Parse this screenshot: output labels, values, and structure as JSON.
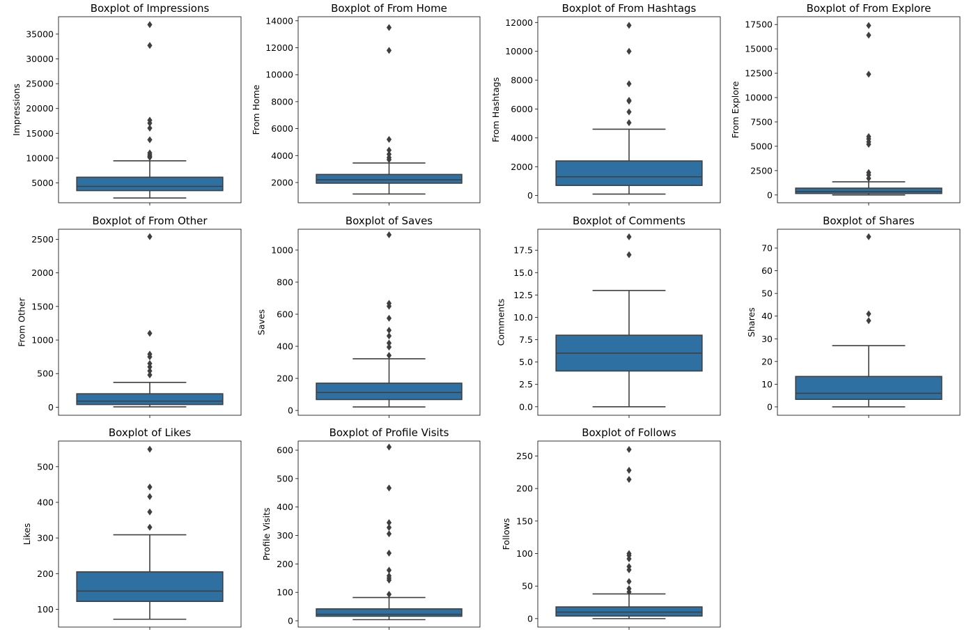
{
  "figure": {
    "background": "#ffffff"
  },
  "style": {
    "box_fill": "#2f70a2",
    "line_color": "#3f3f3f",
    "flier_color": "#3f3f3f"
  },
  "chart_data": [
    {
      "type": "boxplot",
      "title": "Boxplot of Impressions",
      "ylabel": "Impressions",
      "ylim": [
        1000,
        38500
      ],
      "yticks": [
        5000,
        10000,
        15000,
        20000,
        25000,
        30000,
        35000
      ],
      "ytick_labels": [
        "5000",
        "10000",
        "15000",
        "20000",
        "25000",
        "30000",
        "35000"
      ],
      "stats": {
        "whislo": 1950,
        "q1": 3450,
        "median": 4300,
        "q3": 6150,
        "whishi": 9450
      },
      "fliers": [
        10150,
        10350,
        10650,
        11050,
        13700,
        16050,
        17050,
        17650,
        32700,
        36900
      ]
    },
    {
      "type": "boxplot",
      "title": "Boxplot of From Home",
      "ylabel": "From Home",
      "ylim": [
        500,
        14300
      ],
      "yticks": [
        2000,
        4000,
        6000,
        8000,
        10000,
        12000,
        14000
      ],
      "ytick_labels": [
        "2000",
        "4000",
        "6000",
        "8000",
        "10000",
        "12000",
        "14000"
      ],
      "stats": {
        "whislo": 1150,
        "q1": 1950,
        "median": 2200,
        "q3": 2600,
        "whishi": 3450
      },
      "fliers": [
        3700,
        3850,
        4100,
        4400,
        5200,
        11800,
        13500
      ]
    },
    {
      "type": "boxplot",
      "title": "Boxplot of From Hashtags",
      "ylabel": "From Hashtags",
      "ylim": [
        -500,
        12400
      ],
      "yticks": [
        0,
        2000,
        4000,
        6000,
        8000,
        10000,
        12000
      ],
      "ytick_labels": [
        "0",
        "2000",
        "4000",
        "6000",
        "8000",
        "10000",
        "12000"
      ],
      "stats": {
        "whislo": 100,
        "q1": 700,
        "median": 1300,
        "q3": 2400,
        "whishi": 4600
      },
      "fliers": [
        5050,
        5800,
        6550,
        6600,
        7750,
        10000,
        11800
      ]
    },
    {
      "type": "boxplot",
      "title": "Boxplot of From Explore",
      "ylabel": "From Explore",
      "ylim": [
        -800,
        18300
      ],
      "yticks": [
        0,
        2500,
        5000,
        7500,
        10000,
        12500,
        15000,
        17500
      ],
      "ytick_labels": [
        "0",
        "2500",
        "5000",
        "7500",
        "10000",
        "12500",
        "15000",
        "17500"
      ],
      "stats": {
        "whislo": 0,
        "q1": 150,
        "median": 350,
        "q3": 700,
        "whishi": 1350
      },
      "fliers": [
        1700,
        2050,
        2300,
        5200,
        5450,
        5750,
        6000,
        12400,
        16400,
        17400
      ]
    },
    {
      "type": "boxplot",
      "title": "Boxplot of From Other",
      "ylabel": "From Other",
      "ylim": [
        -120,
        2650
      ],
      "yticks": [
        0,
        500,
        1000,
        1500,
        2000,
        2500
      ],
      "ytick_labels": [
        "0",
        "500",
        "1000",
        "1500",
        "2000",
        "2500"
      ],
      "stats": {
        "whislo": 5,
        "q1": 40,
        "median": 90,
        "q3": 200,
        "whishi": 370
      },
      "fliers": [
        480,
        540,
        600,
        650,
        750,
        790,
        1100,
        2540
      ]
    },
    {
      "type": "boxplot",
      "title": "Boxplot of Saves",
      "ylabel": "Saves",
      "ylim": [
        -30,
        1130
      ],
      "yticks": [
        0,
        200,
        400,
        600,
        800,
        1000
      ],
      "ytick_labels": [
        "0",
        "200",
        "400",
        "600",
        "800",
        "1000"
      ],
      "stats": {
        "whislo": 22,
        "q1": 68,
        "median": 112,
        "q3": 170,
        "whishi": 322
      },
      "fliers": [
        343,
        395,
        420,
        465,
        500,
        575,
        650,
        668,
        1095
      ]
    },
    {
      "type": "boxplot",
      "title": "Boxplot of Comments",
      "ylabel": "Comments",
      "ylim": [
        -0.95,
        19.85
      ],
      "yticks": [
        0,
        2.5,
        5,
        7.5,
        10,
        12.5,
        15,
        17.5
      ],
      "ytick_labels": [
        "0.0",
        "2.5",
        "5.0",
        "7.5",
        "10.0",
        "12.5",
        "15.0",
        "17.5"
      ],
      "stats": {
        "whislo": 0,
        "q1": 4,
        "median": 6,
        "q3": 8,
        "whishi": 13
      },
      "fliers": [
        17,
        19
      ]
    },
    {
      "type": "boxplot",
      "title": "Boxplot of Shares",
      "ylabel": "Shares",
      "ylim": [
        -3.7,
        78.3
      ],
      "yticks": [
        0,
        10,
        20,
        30,
        40,
        50,
        60,
        70
      ],
      "ytick_labels": [
        "0",
        "10",
        "20",
        "30",
        "40",
        "50",
        "60",
        "70"
      ],
      "stats": {
        "whislo": 0,
        "q1": 3.3,
        "median": 6,
        "q3": 13.4,
        "whishi": 27
      },
      "fliers": [
        38,
        41,
        75
      ]
    },
    {
      "type": "boxplot",
      "title": "Boxplot of Likes",
      "ylabel": "Likes",
      "ylim": [
        50,
        572
      ],
      "yticks": [
        100,
        200,
        300,
        400,
        500
      ],
      "ytick_labels": [
        "100",
        "200",
        "300",
        "400",
        "500"
      ],
      "stats": {
        "whislo": 72,
        "q1": 122,
        "median": 151,
        "q3": 205,
        "whishi": 309
      },
      "fliers": [
        330,
        373,
        416,
        443,
        549
      ]
    },
    {
      "type": "boxplot",
      "title": "Boxplot of Profile Visits",
      "ylabel": "Profile Visits",
      "ylim": [
        -22,
        632
      ],
      "yticks": [
        0,
        100,
        200,
        300,
        400,
        500,
        600
      ],
      "ytick_labels": [
        "0",
        "100",
        "200",
        "300",
        "400",
        "500",
        "600"
      ],
      "stats": {
        "whislo": 4,
        "q1": 16,
        "median": 23,
        "q3": 42,
        "whishi": 82
      },
      "fliers": [
        93,
        143,
        150,
        158,
        178,
        238,
        306,
        328,
        345,
        467,
        611
      ]
    },
    {
      "type": "boxplot",
      "title": "Boxplot of Follows",
      "ylabel": "Follows",
      "ylim": [
        -13,
        273
      ],
      "yticks": [
        0,
        50,
        100,
        150,
        200,
        250
      ],
      "ytick_labels": [
        "0",
        "50",
        "100",
        "150",
        "200",
        "250"
      ],
      "stats": {
        "whislo": 0,
        "q1": 4,
        "median": 10,
        "q3": 18,
        "whishi": 38
      },
      "fliers": [
        41,
        46,
        57,
        75,
        80,
        92,
        97,
        100,
        214,
        228,
        260
      ]
    }
  ]
}
